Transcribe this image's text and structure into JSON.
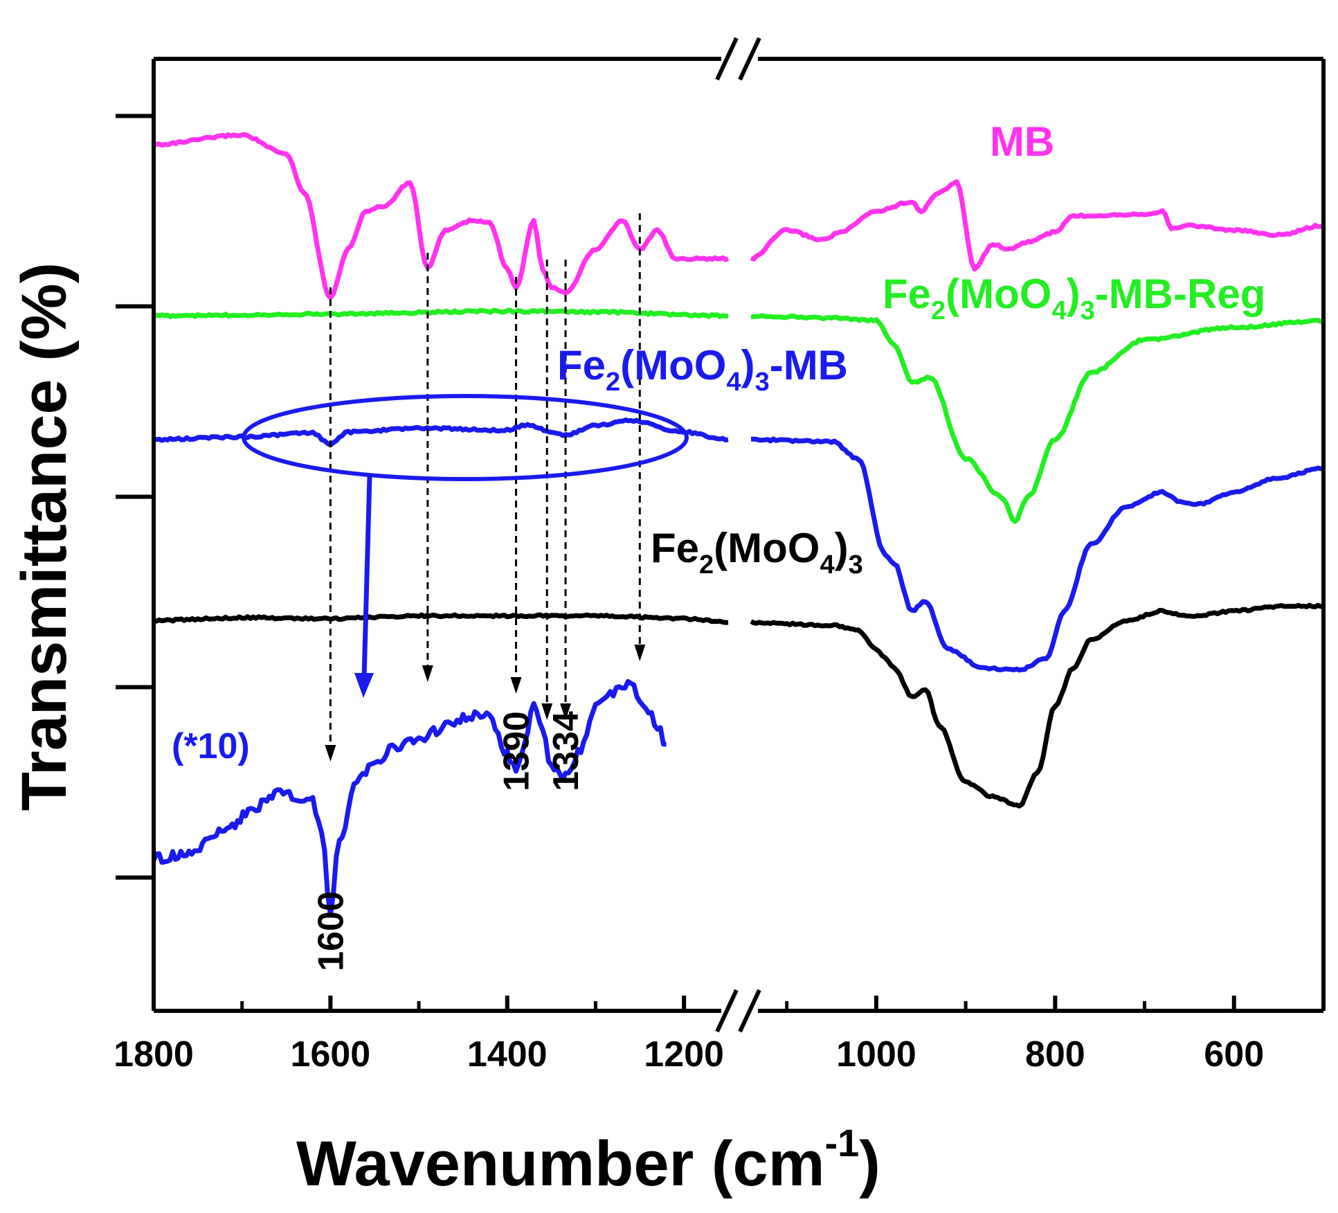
{
  "chart_data": {
    "type": "line",
    "xlabel": "Wavenumber (cm",
    "xlabel_sup": "-1",
    "xlabel_close": ")",
    "ylabel": "Transmittance (%)",
    "x_reversed": true,
    "axis_break_between": [
      1150,
      1140
    ],
    "xlim_left": [
      1800,
      1150
    ],
    "xlim_right": [
      1140,
      500
    ],
    "ylim": [
      0,
      1000
    ],
    "x_ticks_left": [
      1800,
      1600,
      1400,
      1200
    ],
    "x_ticks_right": [
      1000,
      800,
      600
    ],
    "y_ticks": [
      140,
      340,
      540,
      740,
      940
    ],
    "grid": false,
    "series": [
      {
        "name": "MB",
        "color": "#ff33ee",
        "points": [
          [
            1800,
            910
          ],
          [
            1700,
            920
          ],
          [
            1650,
            900
          ],
          [
            1630,
            860
          ],
          [
            1600,
            750
          ],
          [
            1580,
            800
          ],
          [
            1560,
            840
          ],
          [
            1540,
            845
          ],
          [
            1510,
            870
          ],
          [
            1490,
            780
          ],
          [
            1470,
            820
          ],
          [
            1440,
            830
          ],
          [
            1420,
            828
          ],
          [
            1400,
            780
          ],
          [
            1390,
            760
          ],
          [
            1370,
            830
          ],
          [
            1360,
            780
          ],
          [
            1350,
            760
          ],
          [
            1334,
            755
          ],
          [
            1300,
            800
          ],
          [
            1270,
            830
          ],
          [
            1250,
            800
          ],
          [
            1230,
            820
          ],
          [
            1210,
            790
          ],
          [
            1180,
            790
          ],
          [
            1150,
            790
          ]
        ],
        "points_right": [
          [
            1140,
            790
          ],
          [
            1100,
            820
          ],
          [
            1060,
            810
          ],
          [
            1040,
            818
          ],
          [
            1000,
            840
          ],
          [
            960,
            850
          ],
          [
            950,
            840
          ],
          [
            930,
            860
          ],
          [
            910,
            870
          ],
          [
            890,
            780
          ],
          [
            870,
            805
          ],
          [
            850,
            800
          ],
          [
            830,
            808
          ],
          [
            800,
            818
          ],
          [
            780,
            835
          ],
          [
            700,
            837
          ],
          [
            680,
            840
          ],
          [
            670,
            822
          ],
          [
            650,
            825
          ],
          [
            600,
            820
          ],
          [
            550,
            815
          ],
          [
            500,
            825
          ]
        ]
      },
      {
        "name": "Fe2(MoO4)3-MB-Reg",
        "name_parts": [
          "Fe",
          "2",
          "(MoO",
          "4",
          ")",
          "3",
          "-MB-Reg"
        ],
        "color": "#22ee22",
        "points": [
          [
            1800,
            730
          ],
          [
            1600,
            732
          ],
          [
            1400,
            735
          ],
          [
            1300,
            734
          ],
          [
            1150,
            730
          ]
        ],
        "points_right": [
          [
            1140,
            730
          ],
          [
            1050,
            728
          ],
          [
            1000,
            725
          ],
          [
            980,
            700
          ],
          [
            960,
            660
          ],
          [
            940,
            665
          ],
          [
            900,
            580
          ],
          [
            860,
            540
          ],
          [
            845,
            515
          ],
          [
            830,
            540
          ],
          [
            800,
            600
          ],
          [
            760,
            670
          ],
          [
            700,
            705
          ],
          [
            600,
            718
          ],
          [
            500,
            725
          ]
        ]
      },
      {
        "name": "Fe2(MoO4)3-MB",
        "name_parts": [
          "Fe",
          "2",
          "(MoO",
          "4",
          ")",
          "3",
          "-MB"
        ],
        "color": "#1a1aee",
        "points": [
          [
            1800,
            600
          ],
          [
            1700,
            603
          ],
          [
            1620,
            607
          ],
          [
            1600,
            595
          ],
          [
            1580,
            608
          ],
          [
            1500,
            612
          ],
          [
            1400,
            610
          ],
          [
            1380,
            615
          ],
          [
            1334,
            605
          ],
          [
            1300,
            615
          ],
          [
            1260,
            620
          ],
          [
            1200,
            608
          ],
          [
            1150,
            600
          ]
        ],
        "points_right": [
          [
            1140,
            600
          ],
          [
            1050,
            598
          ],
          [
            1020,
            580
          ],
          [
            990,
            480
          ],
          [
            980,
            470
          ],
          [
            960,
            420
          ],
          [
            945,
            430
          ],
          [
            920,
            380
          ],
          [
            880,
            360
          ],
          [
            840,
            358
          ],
          [
            810,
            370
          ],
          [
            790,
            420
          ],
          [
            760,
            490
          ],
          [
            720,
            530
          ],
          [
            680,
            545
          ],
          [
            660,
            535
          ],
          [
            640,
            532
          ],
          [
            600,
            545
          ],
          [
            550,
            560
          ],
          [
            500,
            570
          ]
        ]
      },
      {
        "name": "Fe2(MoO4)3",
        "name_parts": [
          "Fe",
          "2",
          "(MoO",
          "4",
          ")",
          "3"
        ],
        "color": "#000000",
        "points": [
          [
            1800,
            410
          ],
          [
            1700,
            413
          ],
          [
            1600,
            412
          ],
          [
            1500,
            415
          ],
          [
            1400,
            415
          ],
          [
            1300,
            415
          ],
          [
            1200,
            412
          ],
          [
            1150,
            408
          ]
        ],
        "points_right": [
          [
            1140,
            408
          ],
          [
            1050,
            405
          ],
          [
            1020,
            400
          ],
          [
            1000,
            380
          ],
          [
            990,
            370
          ],
          [
            980,
            360
          ],
          [
            960,
            330
          ],
          [
            945,
            338
          ],
          [
            930,
            300
          ],
          [
            900,
            240
          ],
          [
            870,
            225
          ],
          [
            840,
            215
          ],
          [
            820,
            250
          ],
          [
            800,
            320
          ],
          [
            780,
            360
          ],
          [
            760,
            390
          ],
          [
            720,
            410
          ],
          [
            680,
            420
          ],
          [
            650,
            414
          ],
          [
            600,
            420
          ],
          [
            550,
            425
          ],
          [
            500,
            425
          ]
        ]
      },
      {
        "name": "(*10)",
        "color": "#1a1aee",
        "points": [
          [
            1800,
            160
          ],
          [
            1760,
            165
          ],
          [
            1720,
            190
          ],
          [
            1690,
            210
          ],
          [
            1660,
            230
          ],
          [
            1640,
            225
          ],
          [
            1620,
            220
          ],
          [
            1610,
            190
          ],
          [
            1600,
            100
          ],
          [
            1590,
            180
          ],
          [
            1570,
            240
          ],
          [
            1550,
            260
          ],
          [
            1530,
            275
          ],
          [
            1500,
            285
          ],
          [
            1480,
            295
          ],
          [
            1460,
            305
          ],
          [
            1440,
            310
          ],
          [
            1420,
            308
          ],
          [
            1400,
            270
          ],
          [
            1390,
            255
          ],
          [
            1380,
            280
          ],
          [
            1370,
            320
          ],
          [
            1360,
            300
          ],
          [
            1350,
            255
          ],
          [
            1334,
            245
          ],
          [
            1320,
            270
          ],
          [
            1300,
            320
          ],
          [
            1280,
            335
          ],
          [
            1260,
            345
          ],
          [
            1250,
            320
          ],
          [
            1240,
            315
          ],
          [
            1230,
            300
          ],
          [
            1220,
            280
          ]
        ]
      }
    ],
    "peak_labels": [
      "1600",
      "1390",
      "1334"
    ]
  }
}
